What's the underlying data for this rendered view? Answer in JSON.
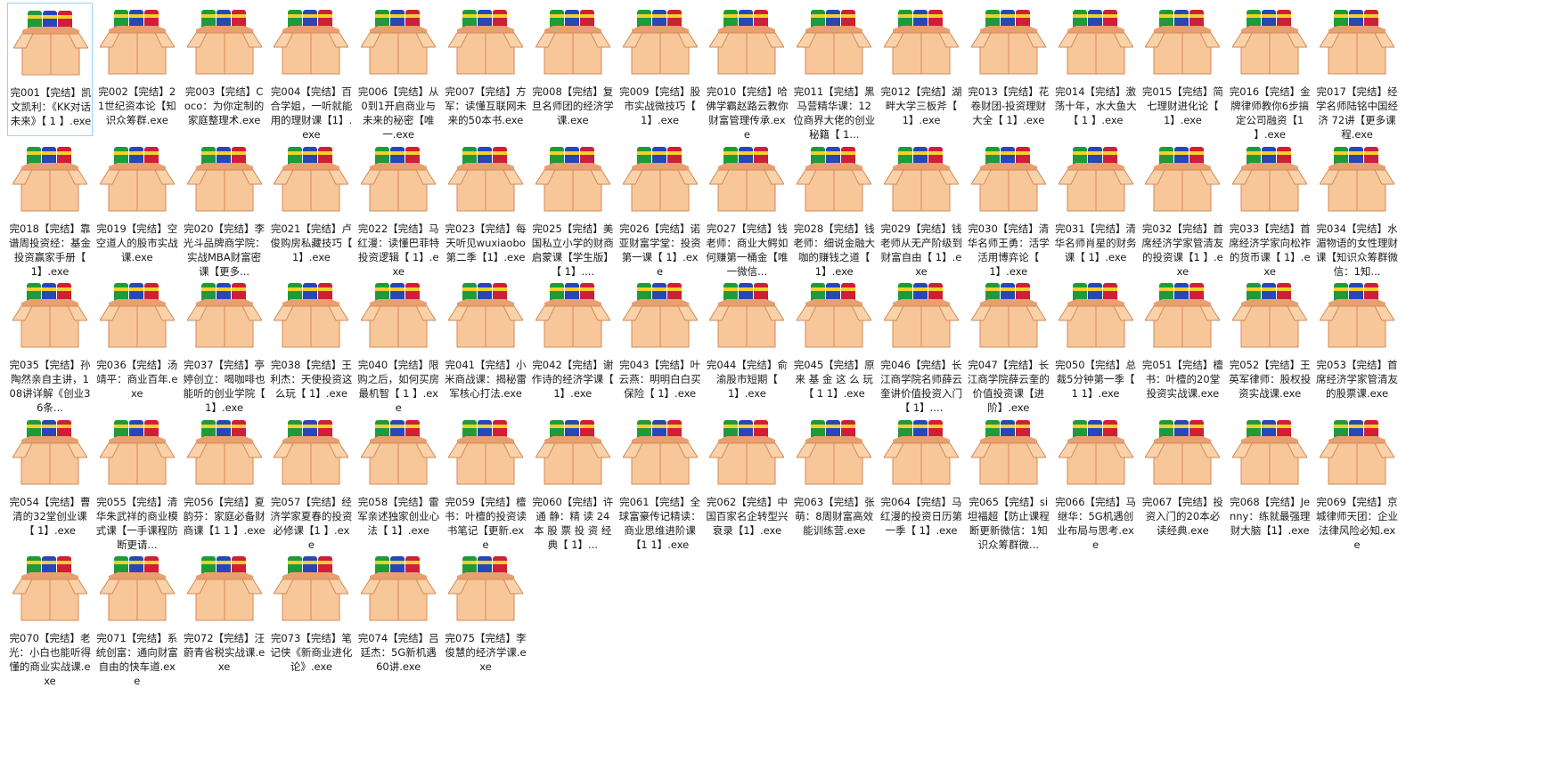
{
  "window": {
    "title": "",
    "view": "large-icons"
  },
  "icon_name": "archive-package-icon",
  "selected_index": 0,
  "files": [
    "完001【完结】凯文凯利：《KK对话未来》【 1 】.exe",
    "完002【完结】21世纪资本论【知识众筹群.exe",
    "完003【完结】Coco：为你定制的家庭整理术.exe",
    "完004【完结】百合学姐，一听就能用的理财课【1】.exe",
    "完006【完结】从0到1开启商业与未来的秘密【唯一.exe",
    "完007【完结】方军：读懂互联网未来的50本书.exe",
    "完008【完结】复旦名师团的经济学课.exe",
    "完009【完结】股市实战微技巧【 1】.exe",
    "完010【完结】哈佛学霸赵路云教你财富管理传承.exe",
    "完011【完结】黑马营精华课：12位商界大佬的创业秘籍【 1...",
    "完012【完结】湖畔大学三板斧【 1】.exe",
    "完013【完结】花卷财团-投资理财大全【 1】.exe",
    "完014【完结】激荡十年，水大鱼大【 1 】.exe",
    "完015【完结】简七理财进化论【 1】.exe",
    "完016【完结】金牌律师教你6步搞定公司融资【1 】.exe",
    "完017【完结】经学名师陆铭中国经济 72讲【更多课程.exe",
    "完018【完结】靠谱周投资经：基金投资赢家手册【 1】.exe",
    "完019【完结】空空道人的股市实战课.exe",
    "完020【完结】李光斗品牌商学院：实战MBA财富密课【更多...",
    "完021【完结】卢俊购房私藏技巧【 1】.exe",
    "完022【完结】马红漫：读懂巴菲特投资逻辑【 1】.exe",
    "完023【完结】每天听见wuxiaobo第二季【1】.exe",
    "完025【完结】美国私立小学的财商启蒙课【学生版】【 1】....",
    "完026【完结】诺亚财富学堂：投资第一课【 1】.exe",
    "完027【完结】钱老师：商业大鳄如何赚第一桶金【唯一微信...",
    "完028【完结】钱老师：细说金融大咖的赚钱之道【 1】.exe",
    "完029【完结】钱老师从无产阶级到财富自由【 1】.exe",
    "完030【完结】清华名师王勇：活学活用博弈论【 1】.exe",
    "完031【完结】清华名师肖星的财务课【 1】.exe",
    "完032【完结】首席经济学家管清友的投资课【1 】.exe",
    "完033【完结】首席经济学家向松祚的货币课【 1】.exe",
    "完034【完结】水湄物语的女性理财课【知识众筹群微信：1知...",
    "完035【完结】孙陶然亲自主讲，108讲详解《创业36条...",
    "完036【完结】汤靖平：商业百年.exe",
    "完037【完结】亭婷创立：喝咖啡也能听的创业学院【 1】.exe",
    "完038【完结】王利杰：天使投资这么玩【 1】.exe",
    "完040【完结】限购之后，如何买房最机智【 1 】.exe",
    "完041【完结】小米商战课：揭秘雷军核心打法.exe",
    "完042【完结】谢作诗的经济学课【 1】.exe",
    "完043【完结】叶云燕：明明白白买保险【 1】.exe",
    "完044【完结】俞渝股市短期【 1】.exe",
    "完045【完结】原 来 基 金 这 么 玩【 1 1】.exe",
    "完046【完结】长江商学院名师薛云奎讲价值投资入门【 1】....",
    "完047【完结】长江商学院薛云奎的价值投资课【进阶】.exe",
    "完050【完结】总裁5分钟第一季【 1 1】.exe",
    "完051【完结】檀书：叶檀的20堂投资实战课.exe",
    "完052【完结】王英军律师：股权投资实战课.exe",
    "完053【完结】首席经济学家管清友的股票课.exe",
    "完054【完结】曹清的32堂创业课【 1】.exe",
    "完055【完结】清华朱武祥的商业模式课【一手课程防断更请...",
    "完056【完结】夏韵芬：家庭必备财商课【1 1 】.exe",
    "完057【完结】经济学家夏春的投资必修课【1 】.exe",
    "完058【完结】雷军亲述独家创业心法【 1】.exe",
    "完059【完结】檀书：叶檀的投资读书笔记【更新.exe",
    "完060【完结】许 通 静：精 读 24 本 股 票 投 资 经 典【 1】...",
    "完061【完结】全球富豪传记精读：商业思维进阶课【1 1】.exe",
    "完062【完结】中国百家名企转型兴衰录【1】.exe",
    "完063【完结】张萌：8周财富高效能训练营.exe",
    "完064【完结】马红漫的投资日历第一季【 1】.exe",
    "完065【完结】si坦福超【防止课程断更新微信：1知识众筹群微...",
    "完066【完结】马继华：5G机遇创业布局与思考.exe",
    "完067【完结】投资入门的20本必读经典.exe",
    "完068【完结】Jenny：练就最强理财大脑【1】.exe",
    "完069【完结】京城律师天团：企业法律风险必知.exe",
    "完070【完结】老光：小白也能听得懂的商业实战课.exe",
    "完071【完结】系统创富：通向财富自由的快车道.exe",
    "完072【完结】汪蔚青省税实战课.exe",
    "完073【完结】笔记侠《新商业进化论》.exe",
    "完074【完结】吕廷杰：5G新机遇60讲.exe",
    "完075【完结】李俊慧的经济学课.exe"
  ]
}
